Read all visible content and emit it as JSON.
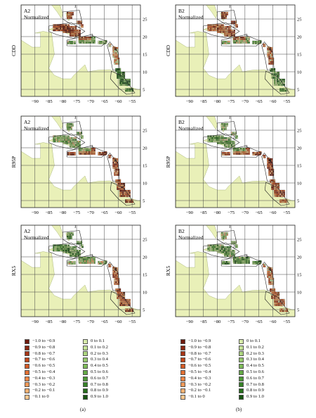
{
  "panels": [
    {
      "scenario": "A2",
      "normalized": "Normalized",
      "variable": "CDD",
      "column": 0,
      "row": 0
    },
    {
      "scenario": "B2",
      "normalized": "Normalized",
      "variable": "CDD",
      "column": 1,
      "row": 0
    },
    {
      "scenario": "A2",
      "normalized": "Normalized",
      "variable": "R95P",
      "column": 0,
      "row": 1
    },
    {
      "scenario": "B2",
      "normalized": "Normalized",
      "variable": "R95P",
      "column": 1,
      "row": 1
    },
    {
      "scenario": "A2",
      "normalized": "Normalized",
      "variable": "RX5",
      "column": 0,
      "row": 2
    },
    {
      "scenario": "B2",
      "normalized": "Normalized",
      "variable": "RX5",
      "column": 1,
      "row": 2
    }
  ],
  "x_ticks": [
    "−90",
    "−85",
    "−80",
    "−75",
    "−70",
    "−65",
    "−60",
    "−55"
  ],
  "y_ticks": [
    "25",
    "20",
    "15",
    "10",
    "5"
  ],
  "region_numbers": [
    "1",
    "2",
    "3",
    "4",
    "5"
  ],
  "legend_negative": [
    {
      "label": "−1.0 to −0.9",
      "color": "#6e1a0e"
    },
    {
      "label": "−0.9 to −0.8",
      "color": "#8a2712"
    },
    {
      "label": "−0.8 to −0.7",
      "color": "#a63516"
    },
    {
      "label": "−0.7 to −0.6",
      "color": "#bf461c"
    },
    {
      "label": "−0.6 to −0.5",
      "color": "#d45a25"
    },
    {
      "label": "−0.5 to −0.4",
      "color": "#e26f32"
    },
    {
      "label": "−0.4 to −0.3",
      "color": "#ec8444"
    },
    {
      "label": "−0.3 to −0.2",
      "color": "#f29a58"
    },
    {
      "label": "−0.2 to −0.1",
      "color": "#f6b070"
    },
    {
      "label": "−0.1 to 0",
      "color": "#f9c68c"
    }
  ],
  "legend_positive": [
    {
      "label": "0 to 0.1",
      "color": "#d8ecaa"
    },
    {
      "label": "0.1 to 0.2",
      "color": "#c4e296"
    },
    {
      "label": "0.2 to 0.3",
      "color": "#aed680"
    },
    {
      "label": "0.3 to 0.4",
      "color": "#96c96c"
    },
    {
      "label": "0.4 to 0.5",
      "color": "#7dbb58"
    },
    {
      "label": "0.5 to 0.6",
      "color": "#64aa46"
    },
    {
      "label": "0.6 to 0.7",
      "color": "#4c9736"
    },
    {
      "label": "0.7 to 0.8",
      "color": "#378228"
    },
    {
      "label": "0.8 to 0.9",
      "color": "#266c1c"
    },
    {
      "label": "0.9 to 1.0",
      "color": "#175412"
    }
  ],
  "column_labels": [
    "(a)",
    "(b)"
  ],
  "colors": {
    "land": "#e9f0b8",
    "coast": "#9aa86a",
    "grid": "#444444",
    "outline": "#222222"
  }
}
